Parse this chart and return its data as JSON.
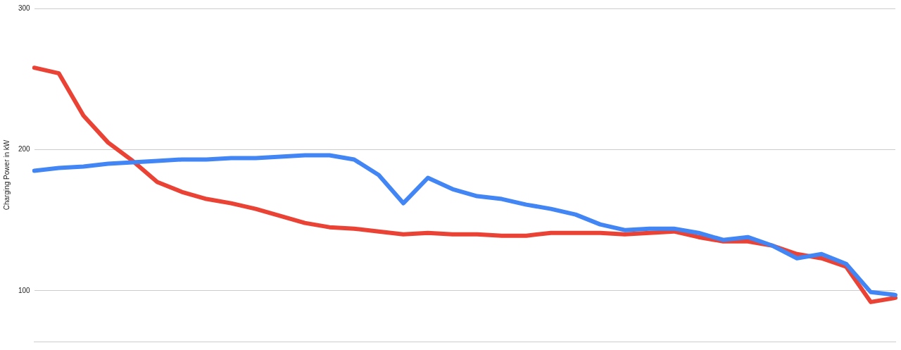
{
  "chart_data": {
    "type": "line",
    "ylabel": "Charging Power in kW",
    "categories": [
      null,
      null,
      null,
      null,
      null,
      null,
      null,
      null,
      null,
      null,
      null,
      null,
      null,
      null,
      null,
      null,
      null,
      null,
      null,
      null,
      null,
      null,
      null,
      null,
      null,
      null,
      null,
      null,
      null,
      null,
      null,
      null,
      null,
      null,
      null,
      null
    ],
    "ylim": [
      64,
      300
    ],
    "yticks": [
      100,
      200,
      300
    ],
    "grid": "y",
    "legend": false,
    "tick_labels": "y",
    "marker": "none",
    "line_style": "solid",
    "series": [
      {
        "color": "#4285f4",
        "values": [
          185,
          187,
          188,
          190,
          191,
          192,
          193,
          193,
          194,
          194,
          195,
          196,
          196,
          193,
          182,
          162,
          180,
          172,
          167,
          165,
          161,
          158,
          154,
          147,
          143,
          144,
          144,
          141,
          136,
          138,
          132,
          123,
          126,
          119,
          99,
          97
        ]
      },
      {
        "color": "#ea4335",
        "values": [
          258,
          254,
          224,
          205,
          192,
          177,
          170,
          165,
          162,
          158,
          153,
          148,
          145,
          144,
          142,
          140,
          141,
          140,
          140,
          139,
          139,
          141,
          141,
          141,
          140,
          141,
          142,
          138,
          135,
          135,
          132,
          126,
          123,
          117,
          92,
          95
        ]
      }
    ]
  }
}
